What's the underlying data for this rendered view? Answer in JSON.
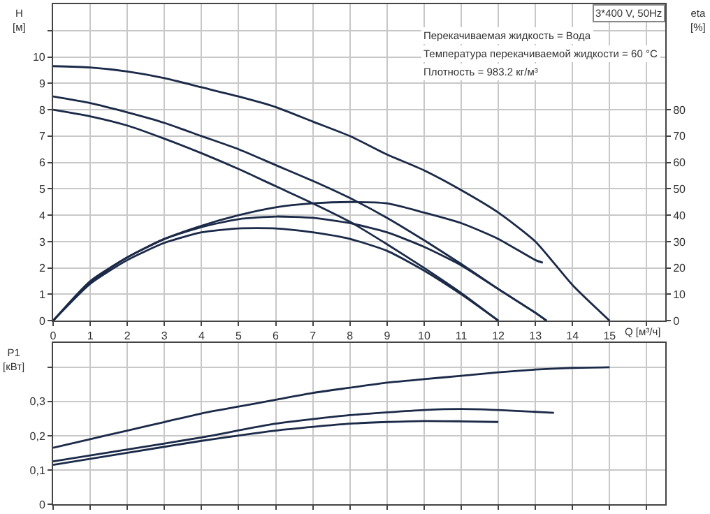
{
  "chart_data": [
    {
      "type": "line",
      "xlabel": "Q [м³/ч]",
      "ylabel": "H [м]",
      "y2label": "eta [%]",
      "annotations": [
        "3*400 V, 50Hz",
        "Перекачиваемая жидкость = Вода",
        "Температура перекачиваемой жидкости = 60 °C",
        "Плотность = 983.2 кг/м³"
      ],
      "xlim": [
        0,
        16.5
      ],
      "xticks": [
        0,
        1,
        2,
        3,
        4,
        5,
        6,
        7,
        8,
        9,
        10,
        11,
        12,
        13,
        14,
        15,
        {
          "value": 16,
          "label": null
        }
      ],
      "ylim": [
        0,
        12
      ],
      "yticks": [
        0,
        1,
        2,
        3,
        4,
        5,
        6,
        7,
        8,
        9,
        10,
        {
          "value": 11,
          "label": null
        }
      ],
      "y2lim": [
        0,
        120
      ],
      "y2ticks": [
        0,
        10,
        20,
        30,
        40,
        50,
        60,
        70,
        80
      ],
      "grid": true,
      "line_style": "solid",
      "series": [
        {
          "color": "#1b2a48",
          "x": [
            0,
            1,
            2,
            3,
            4,
            5,
            6,
            7,
            8,
            9,
            10,
            11,
            12,
            13,
            14,
            15
          ],
          "values": [
            9.65,
            9.6,
            9.45,
            9.2,
            8.85,
            8.5,
            8.1,
            7.55,
            7.0,
            6.3,
            5.7,
            4.95,
            4.1,
            3.0,
            1.35,
            0
          ]
        },
        {
          "color": "#1b2a48",
          "x": [
            0,
            1,
            2,
            3,
            4,
            5,
            6,
            7,
            8,
            9,
            10,
            11,
            12,
            13,
            13.3
          ],
          "values": [
            8.5,
            8.25,
            7.9,
            7.5,
            7.0,
            6.5,
            5.9,
            5.3,
            4.65,
            3.9,
            3.05,
            2.15,
            1.2,
            0.3,
            0
          ]
        },
        {
          "color": "#1b2a48",
          "x": [
            0,
            1,
            2,
            3,
            4,
            5,
            6,
            7,
            8,
            9,
            10,
            11,
            12
          ],
          "values": [
            8.0,
            7.75,
            7.4,
            6.9,
            6.35,
            5.75,
            5.1,
            4.45,
            3.75,
            2.9,
            2.0,
            1.05,
            0
          ]
        },
        {
          "color": "#1b2a48",
          "axis": "y2",
          "x": [
            0,
            1,
            2,
            3,
            4,
            5,
            6,
            7,
            8,
            9,
            10,
            11,
            12,
            13,
            13.2
          ],
          "values": [
            0,
            15,
            24,
            31,
            36,
            40,
            43,
            44.5,
            45,
            44.5,
            41,
            37,
            31,
            23,
            22
          ]
        },
        {
          "color": "#1b2a48",
          "axis": "y2",
          "x": [
            0,
            1,
            2,
            3,
            4,
            5,
            6,
            7,
            8,
            9,
            10,
            11,
            12,
            13,
            13.3
          ],
          "values": [
            0,
            14.5,
            24,
            31,
            35.5,
            38.5,
            39.5,
            39,
            37,
            33.5,
            28,
            21,
            12,
            3,
            0
          ]
        },
        {
          "color": "#1b2a48",
          "axis": "y2",
          "x": [
            0,
            1,
            2,
            3,
            4,
            5,
            6,
            7,
            8,
            9,
            10,
            11,
            12
          ],
          "values": [
            0,
            14,
            23,
            29.5,
            33.5,
            35,
            35,
            33.5,
            31,
            26.5,
            19,
            10,
            0
          ]
        }
      ]
    },
    {
      "type": "line",
      "ylabel": "P1 [кВт]",
      "xlim": [
        0,
        16.5
      ],
      "xticks": [
        0,
        1,
        2,
        3,
        4,
        5,
        6,
        7,
        8,
        9,
        10,
        11,
        12,
        13,
        14,
        15,
        16
      ],
      "ylim": [
        0,
        0.47
      ],
      "yticks": [
        {
          "value": 0,
          "label": "0"
        },
        {
          "value": 0.1,
          "label": "0,1"
        },
        {
          "value": 0.2,
          "label": "0,2"
        },
        {
          "value": 0.3,
          "label": "0,3"
        },
        {
          "value": 0.4,
          "label": null
        }
      ],
      "tick_labels": "y",
      "grid": true,
      "line_style": "solid",
      "series": [
        {
          "color": "#1b2a48",
          "x": [
            0,
            1,
            2,
            3,
            4,
            5,
            6,
            7,
            8,
            9,
            10,
            11,
            12,
            13,
            14,
            15
          ],
          "values": [
            0.165,
            0.19,
            0.215,
            0.24,
            0.265,
            0.285,
            0.305,
            0.325,
            0.34,
            0.355,
            0.365,
            0.375,
            0.385,
            0.393,
            0.398,
            0.4
          ]
        },
        {
          "color": "#1b2a48",
          "x": [
            0,
            2,
            4,
            6,
            8,
            10,
            11,
            12,
            13.5
          ],
          "values": [
            0.125,
            0.16,
            0.195,
            0.235,
            0.26,
            0.275,
            0.278,
            0.275,
            0.267
          ]
        },
        {
          "color": "#1b2a48",
          "x": [
            0,
            2,
            4,
            6,
            8,
            9,
            10,
            11,
            12
          ],
          "values": [
            0.115,
            0.15,
            0.185,
            0.215,
            0.235,
            0.24,
            0.243,
            0.242,
            0.24
          ]
        }
      ]
    }
  ]
}
